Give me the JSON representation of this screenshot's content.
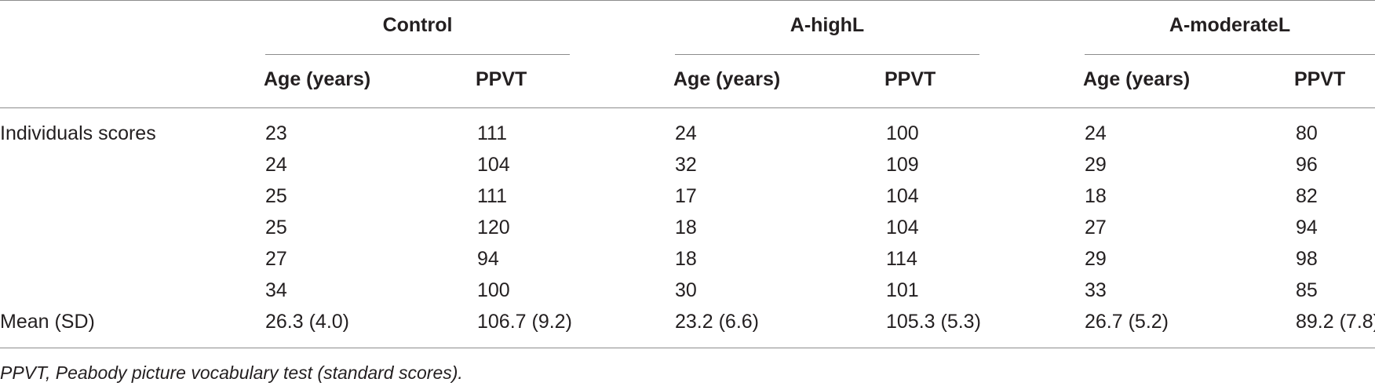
{
  "groups": [
    {
      "label": "Control"
    },
    {
      "label": "A-highL"
    },
    {
      "label": "A-moderateL"
    }
  ],
  "column_headers": {
    "age": "Age (years)",
    "ppvt": "PPVT"
  },
  "rows": [
    {
      "label": "Individuals scores",
      "values": [
        "23",
        "111",
        "24",
        "100",
        "24",
        "80"
      ]
    },
    {
      "label": "",
      "values": [
        "24",
        "104",
        "32",
        "109",
        "29",
        "96"
      ]
    },
    {
      "label": "",
      "values": [
        "25",
        "111",
        "17",
        "104",
        "18",
        "82"
      ]
    },
    {
      "label": "",
      "values": [
        "25",
        "120",
        "18",
        "104",
        "27",
        "94"
      ]
    },
    {
      "label": "",
      "values": [
        "27",
        "94",
        "18",
        "114",
        "29",
        "98"
      ]
    },
    {
      "label": "",
      "values": [
        "34",
        "100",
        "30",
        "101",
        "33",
        "85"
      ]
    },
    {
      "label": "Mean (SD)",
      "values": [
        "26.3 (4.0)",
        "106.7 (9.2)",
        "23.2 (6.6)",
        "105.3 (5.3)",
        "26.7 (5.2)",
        "89.2 (7.8)"
      ]
    }
  ],
  "footnote": "PPVT, Peabody picture vocabulary test (standard scores)."
}
